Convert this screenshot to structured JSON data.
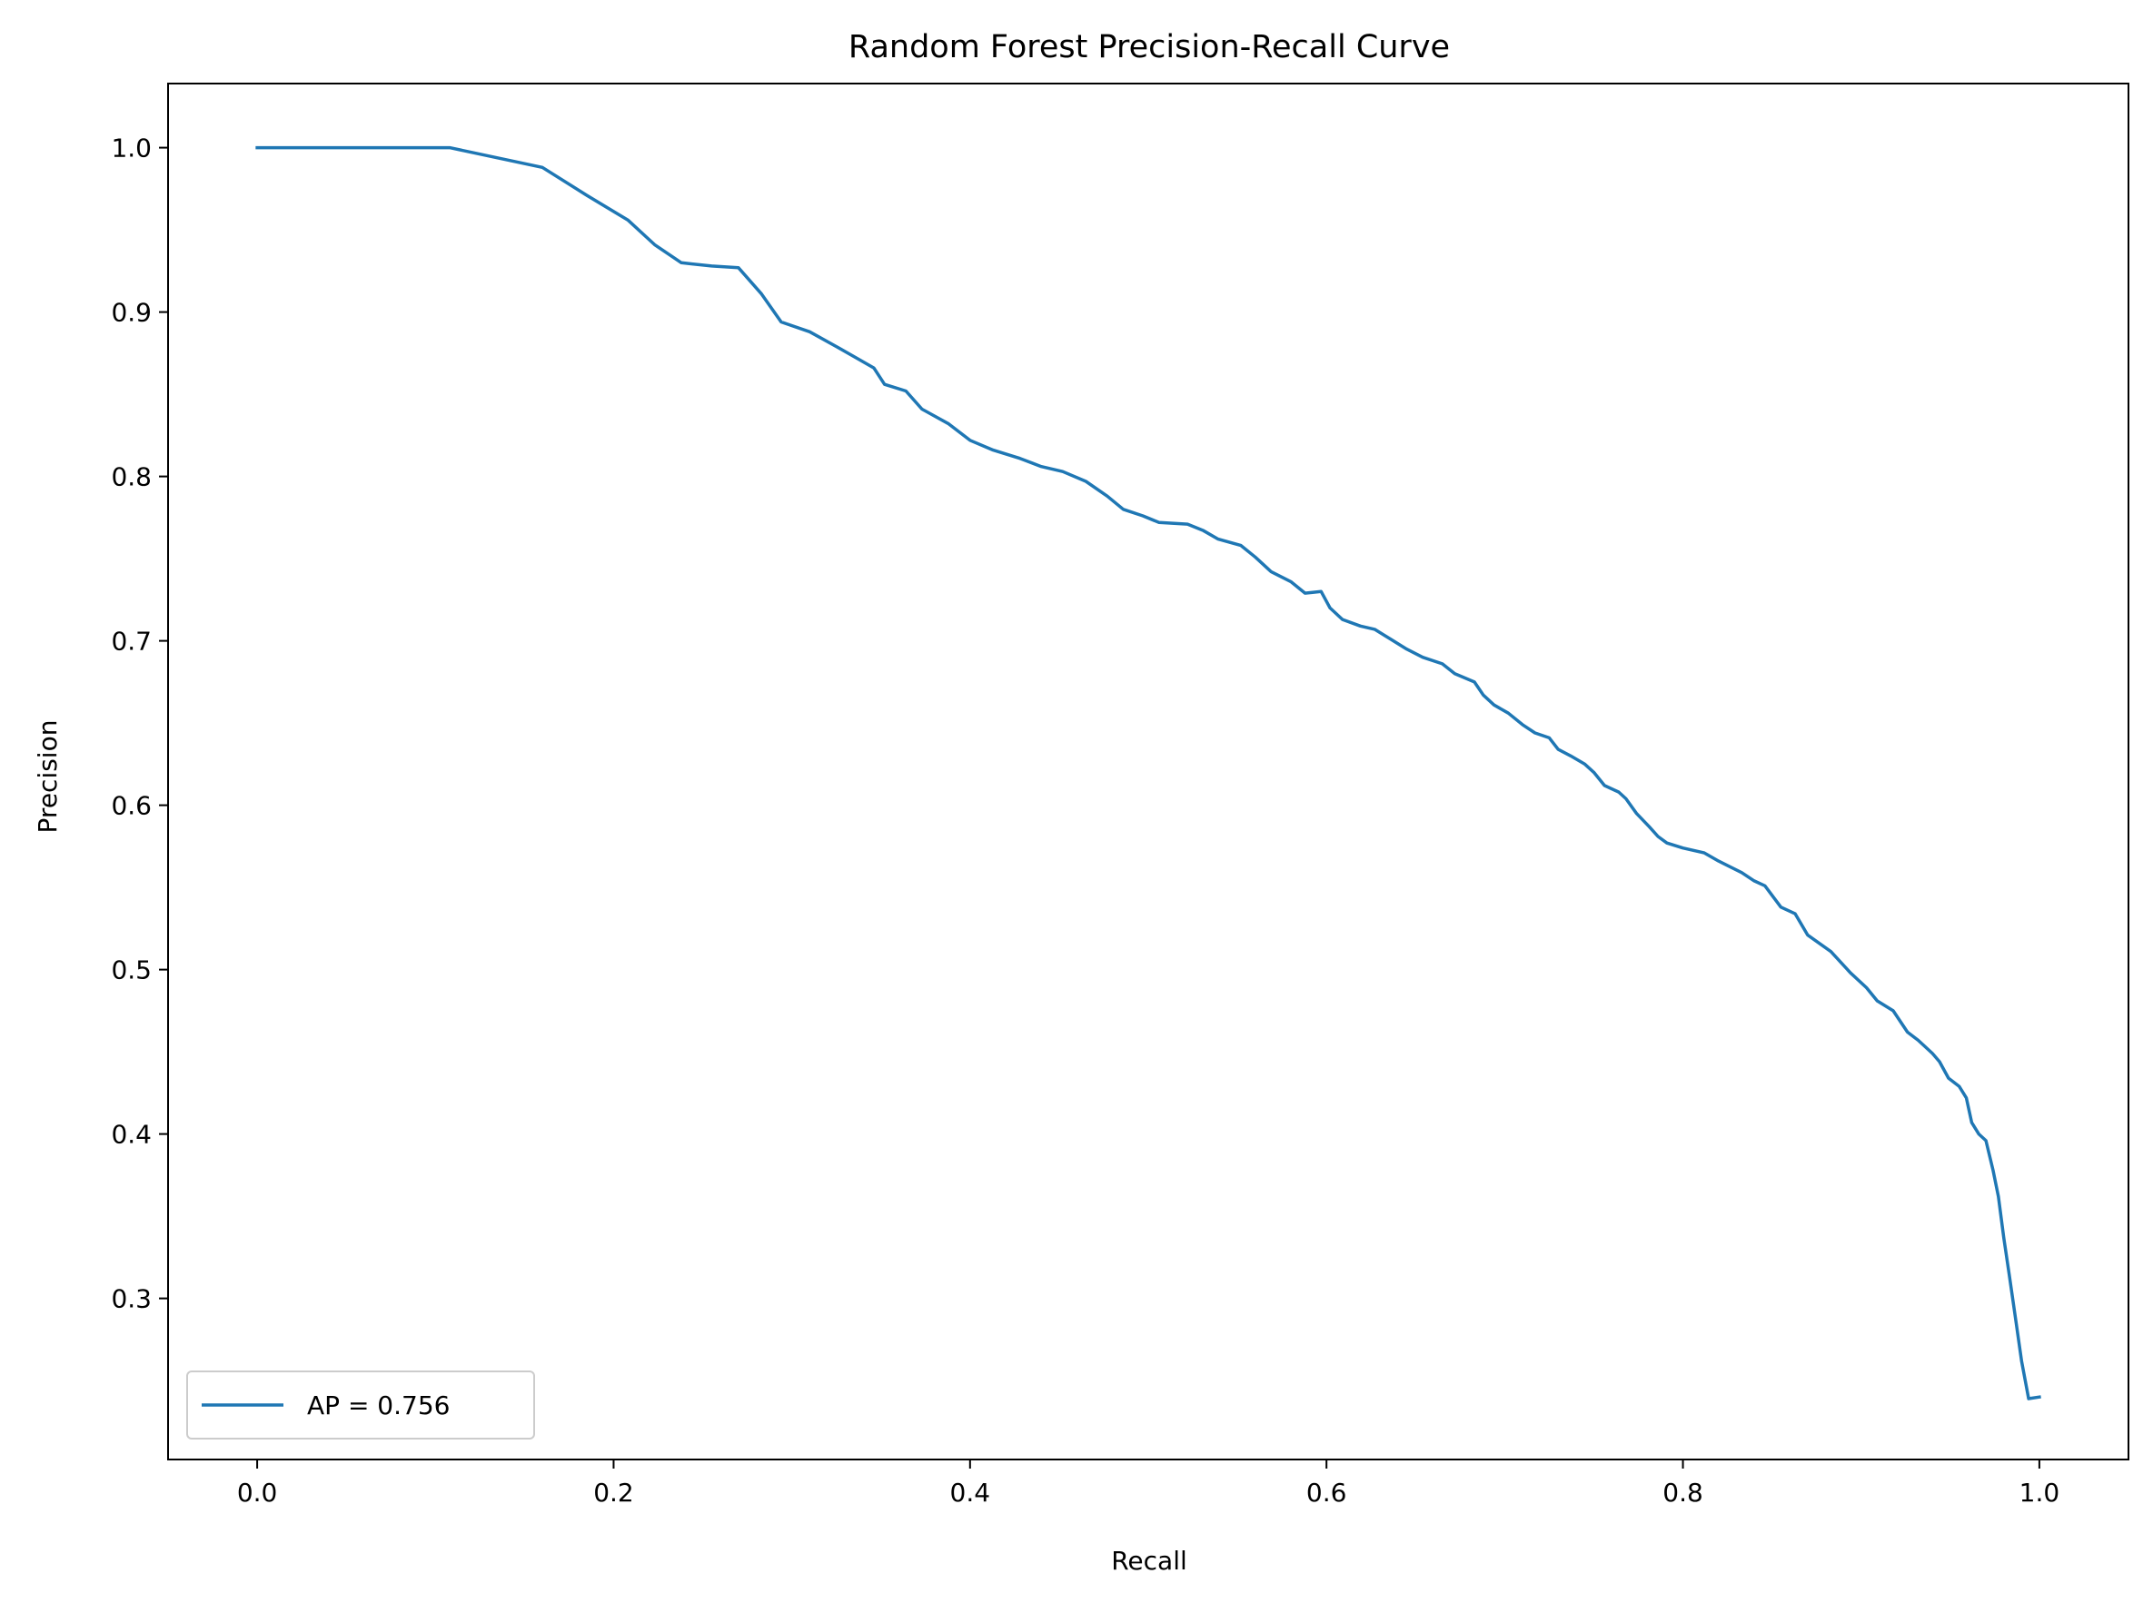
{
  "chart_data": {
    "type": "line",
    "title": "Random Forest Precision-Recall Curve",
    "xlabel": "Recall",
    "ylabel": "Precision",
    "xlim": [
      -0.05,
      1.05
    ],
    "ylim": [
      0.202,
      1.039
    ],
    "xticks": [
      0.0,
      0.2,
      0.4,
      0.6,
      0.8,
      1.0
    ],
    "xtick_labels": [
      "0.0",
      "0.2",
      "0.4",
      "0.6",
      "0.8",
      "1.0"
    ],
    "yticks": [
      0.3,
      0.4,
      0.5,
      0.6,
      0.7,
      0.8,
      0.9,
      1.0
    ],
    "ytick_labels": [
      "0.3",
      "0.4",
      "0.5",
      "0.6",
      "0.7",
      "0.8",
      "0.9",
      "1.0"
    ],
    "grid": false,
    "legend_position": "lower-left",
    "series": [
      {
        "name": "AP = 0.756",
        "color": "#1f77b4",
        "x": [
          0.0,
          0.05,
          0.108,
          0.16,
          0.185,
          0.208,
          0.223,
          0.238,
          0.255,
          0.27,
          0.283,
          0.294,
          0.31,
          0.325,
          0.338,
          0.346,
          0.352,
          0.364,
          0.373,
          0.388,
          0.4,
          0.413,
          0.428,
          0.44,
          0.452,
          0.465,
          0.477,
          0.486,
          0.497,
          0.506,
          0.522,
          0.531,
          0.539,
          0.552,
          0.56,
          0.569,
          0.58,
          0.588,
          0.597,
          0.602,
          0.609,
          0.619,
          0.627,
          0.636,
          0.645,
          0.654,
          0.665,
          0.672,
          0.683,
          0.688,
          0.694,
          0.702,
          0.71,
          0.717,
          0.725,
          0.73,
          0.737,
          0.745,
          0.75,
          0.756,
          0.764,
          0.768,
          0.774,
          0.781,
          0.786,
          0.791,
          0.8,
          0.812,
          0.82,
          0.833,
          0.84,
          0.846,
          0.855,
          0.863,
          0.87,
          0.883,
          0.894,
          0.903,
          0.909,
          0.918,
          0.926,
          0.932,
          0.94,
          0.944,
          0.949,
          0.955,
          0.959,
          0.962,
          0.966,
          0.97,
          0.974,
          0.977,
          0.98,
          0.983,
          0.987,
          0.99,
          0.994,
          1.0
        ],
        "y": [
          1.0,
          1.0,
          1.0,
          0.988,
          0.971,
          0.956,
          0.941,
          0.93,
          0.928,
          0.927,
          0.911,
          0.894,
          0.888,
          0.879,
          0.871,
          0.866,
          0.856,
          0.852,
          0.841,
          0.832,
          0.822,
          0.816,
          0.811,
          0.806,
          0.803,
          0.797,
          0.788,
          0.78,
          0.776,
          0.772,
          0.771,
          0.767,
          0.762,
          0.758,
          0.751,
          0.742,
          0.736,
          0.729,
          0.73,
          0.72,
          0.713,
          0.709,
          0.707,
          0.701,
          0.695,
          0.69,
          0.686,
          0.68,
          0.675,
          0.667,
          0.661,
          0.656,
          0.649,
          0.644,
          0.641,
          0.634,
          0.63,
          0.625,
          0.62,
          0.612,
          0.608,
          0.604,
          0.595,
          0.587,
          0.581,
          0.577,
          0.574,
          0.571,
          0.566,
          0.559,
          0.554,
          0.551,
          0.538,
          0.534,
          0.521,
          0.511,
          0.498,
          0.489,
          0.481,
          0.475,
          0.462,
          0.457,
          0.449,
          0.444,
          0.434,
          0.429,
          0.422,
          0.407,
          0.4,
          0.396,
          0.378,
          0.362,
          0.337,
          0.315,
          0.285,
          0.262,
          0.239,
          0.24
        ]
      }
    ]
  }
}
